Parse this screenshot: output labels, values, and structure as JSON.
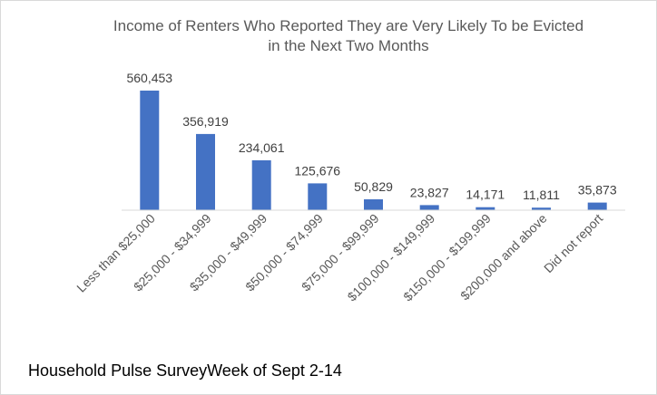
{
  "chart_data": {
    "type": "bar",
    "title": "Income of Renters Who Reported They are Very Likely To be Evicted in the Next Two Months",
    "title_lines": [
      "Income of Renters Who Reported They are Very Likely To be Evicted",
      "in the Next Two Months"
    ],
    "categories": [
      "Less than $25,000",
      "$25,000 - $34,999",
      "$35,000 - $49,999",
      "$50,000 - $74,999",
      "$75,000 - $99,999",
      "$100,000 - $149,999",
      "$150,000 - $199,999",
      "$200,000 and above",
      "Did not report"
    ],
    "values": [
      560453,
      356919,
      234061,
      125676,
      50829,
      23827,
      14171,
      11811,
      35873
    ],
    "value_labels": [
      "560,453",
      "356,919",
      "234,061",
      "125,676",
      "50,829",
      "23,827",
      "14,171",
      "11,811",
      "35,873"
    ],
    "xlabel": "",
    "ylabel": "",
    "ylim": [
      0,
      560453
    ],
    "grid": false,
    "legend": "none",
    "bar_color": "#4472c4"
  },
  "footnote": "Household Pulse SurveyWeek of Sept 2-14"
}
